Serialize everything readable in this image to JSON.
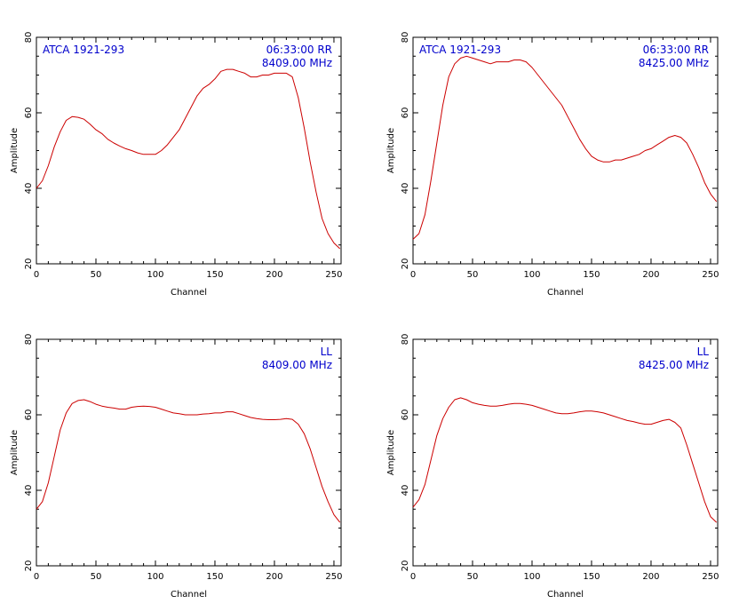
{
  "colors": {
    "series": "#cc0000",
    "annotation": "#0000cc",
    "axes": "#000000",
    "background": "#ffffff"
  },
  "chart_data": [
    {
      "type": "line",
      "xlabel": "Channel",
      "ylabel": "Amplitude",
      "xlim": [
        0,
        256
      ],
      "ylim": [
        20,
        80
      ],
      "xticks": [
        "0",
        "50",
        "100",
        "150",
        "200",
        "250"
      ],
      "yticks": [
        "20",
        "40",
        "60",
        "80"
      ],
      "grid": false,
      "annotation_left": [
        "ATCA 1921-293"
      ],
      "annotation_right": [
        "06:33:00  RR",
        "8409.00 MHz"
      ],
      "series": [
        {
          "x": [
            0,
            5,
            10,
            15,
            20,
            25,
            30,
            35,
            40,
            45,
            50,
            55,
            60,
            65,
            70,
            75,
            80,
            85,
            90,
            95,
            100,
            105,
            110,
            115,
            120,
            125,
            130,
            135,
            140,
            145,
            150,
            155,
            160,
            165,
            170,
            175,
            180,
            185,
            190,
            195,
            200,
            205,
            210,
            215,
            220,
            225,
            230,
            235,
            240,
            245,
            250,
            255
          ],
          "y": [
            40,
            42,
            46,
            51,
            55,
            58,
            59,
            58.8,
            58.3,
            57,
            55.5,
            54.5,
            53,
            52,
            51.2,
            50.5,
            50,
            49.4,
            49,
            49,
            49,
            50,
            51.5,
            53.5,
            55.5,
            58.5,
            61.5,
            64.5,
            66.5,
            67.5,
            69,
            71,
            71.5,
            71.5,
            71,
            70.5,
            69.5,
            69.5,
            70,
            70,
            70.5,
            70.5,
            70.5,
            69.5,
            64,
            56,
            47,
            39,
            32,
            28,
            25.5,
            24
          ]
        }
      ]
    },
    {
      "type": "line",
      "xlabel": "Channel",
      "ylabel": "Amplitude",
      "xlim": [
        0,
        256
      ],
      "ylim": [
        20,
        80
      ],
      "xticks": [
        "0",
        "50",
        "100",
        "150",
        "200",
        "250"
      ],
      "yticks": [
        "20",
        "40",
        "60",
        "80"
      ],
      "grid": false,
      "annotation_left": [
        "ATCA 1921-293"
      ],
      "annotation_right": [
        "06:33:00  RR",
        "8425.00 MHz"
      ],
      "series": [
        {
          "x": [
            0,
            5,
            10,
            15,
            20,
            25,
            30,
            35,
            40,
            45,
            50,
            55,
            60,
            65,
            70,
            75,
            80,
            85,
            90,
            95,
            100,
            105,
            110,
            115,
            120,
            125,
            130,
            135,
            140,
            145,
            150,
            155,
            160,
            165,
            170,
            175,
            180,
            185,
            190,
            195,
            200,
            205,
            210,
            215,
            220,
            225,
            230,
            235,
            240,
            245,
            250,
            255
          ],
          "y": [
            26.5,
            28,
            33,
            42,
            52,
            62,
            69.5,
            73,
            74.5,
            75,
            74.5,
            74,
            73.5,
            73,
            73.5,
            73.5,
            73.5,
            74,
            74,
            73.5,
            72,
            70,
            68,
            66,
            64,
            62,
            59,
            56,
            53,
            50.5,
            48.5,
            47.5,
            47,
            47,
            47.5,
            47.5,
            48,
            48.5,
            49,
            50,
            50.5,
            51.5,
            52.5,
            53.5,
            54,
            53.5,
            52,
            49,
            45.5,
            41.5,
            38.5,
            36.5
          ]
        }
      ]
    },
    {
      "type": "line",
      "xlabel": "Channel",
      "ylabel": "Amplitude",
      "xlim": [
        0,
        256
      ],
      "ylim": [
        20,
        80
      ],
      "xticks": [
        "0",
        "50",
        "100",
        "150",
        "200",
        "250"
      ],
      "yticks": [
        "20",
        "40",
        "60",
        "80"
      ],
      "grid": false,
      "annotation_left": [],
      "annotation_right": [
        "LL",
        "8409.00 MHz"
      ],
      "series": [
        {
          "x": [
            0,
            5,
            10,
            15,
            20,
            25,
            30,
            35,
            40,
            45,
            50,
            55,
            60,
            65,
            70,
            75,
            80,
            85,
            90,
            95,
            100,
            105,
            110,
            115,
            120,
            125,
            130,
            135,
            140,
            145,
            150,
            155,
            160,
            165,
            170,
            175,
            180,
            185,
            190,
            195,
            200,
            205,
            210,
            215,
            220,
            225,
            230,
            235,
            240,
            245,
            250,
            255
          ],
          "y": [
            35,
            37,
            42,
            49,
            56,
            60.5,
            63,
            63.8,
            64,
            63.5,
            62.8,
            62.3,
            62,
            61.8,
            61.5,
            61.5,
            62,
            62.2,
            62.3,
            62.2,
            62,
            61.5,
            61,
            60.5,
            60.3,
            60,
            60,
            60,
            60.2,
            60.3,
            60.5,
            60.5,
            60.8,
            60.8,
            60.3,
            59.8,
            59.3,
            59,
            58.8,
            58.7,
            58.7,
            58.8,
            59,
            58.8,
            57.5,
            55,
            51,
            46,
            41,
            37,
            33.5,
            31.5
          ]
        }
      ]
    },
    {
      "type": "line",
      "xlabel": "Channel",
      "ylabel": "Amplitude",
      "xlim": [
        0,
        256
      ],
      "ylim": [
        20,
        80
      ],
      "xticks": [
        "0",
        "50",
        "100",
        "150",
        "200",
        "250"
      ],
      "yticks": [
        "20",
        "40",
        "60",
        "80"
      ],
      "grid": false,
      "annotation_left": [],
      "annotation_right": [
        "LL",
        "8425.00 MHz"
      ],
      "series": [
        {
          "x": [
            0,
            5,
            10,
            15,
            20,
            25,
            30,
            35,
            40,
            45,
            50,
            55,
            60,
            65,
            70,
            75,
            80,
            85,
            90,
            95,
            100,
            105,
            110,
            115,
            120,
            125,
            130,
            135,
            140,
            145,
            150,
            155,
            160,
            165,
            170,
            175,
            180,
            185,
            190,
            195,
            200,
            205,
            210,
            215,
            220,
            225,
            230,
            235,
            240,
            245,
            250,
            255
          ],
          "y": [
            35.5,
            37.5,
            41.5,
            48,
            54.5,
            59,
            62,
            64,
            64.5,
            64,
            63.2,
            62.8,
            62.5,
            62.3,
            62.3,
            62.5,
            62.8,
            63,
            63,
            62.8,
            62.5,
            62,
            61.5,
            61,
            60.5,
            60.3,
            60.3,
            60.5,
            60.8,
            61,
            61,
            60.8,
            60.5,
            60,
            59.5,
            59,
            58.5,
            58.2,
            57.8,
            57.5,
            57.5,
            58,
            58.5,
            58.8,
            58,
            56.5,
            52,
            47,
            42,
            37,
            33,
            31.5
          ]
        }
      ]
    }
  ]
}
